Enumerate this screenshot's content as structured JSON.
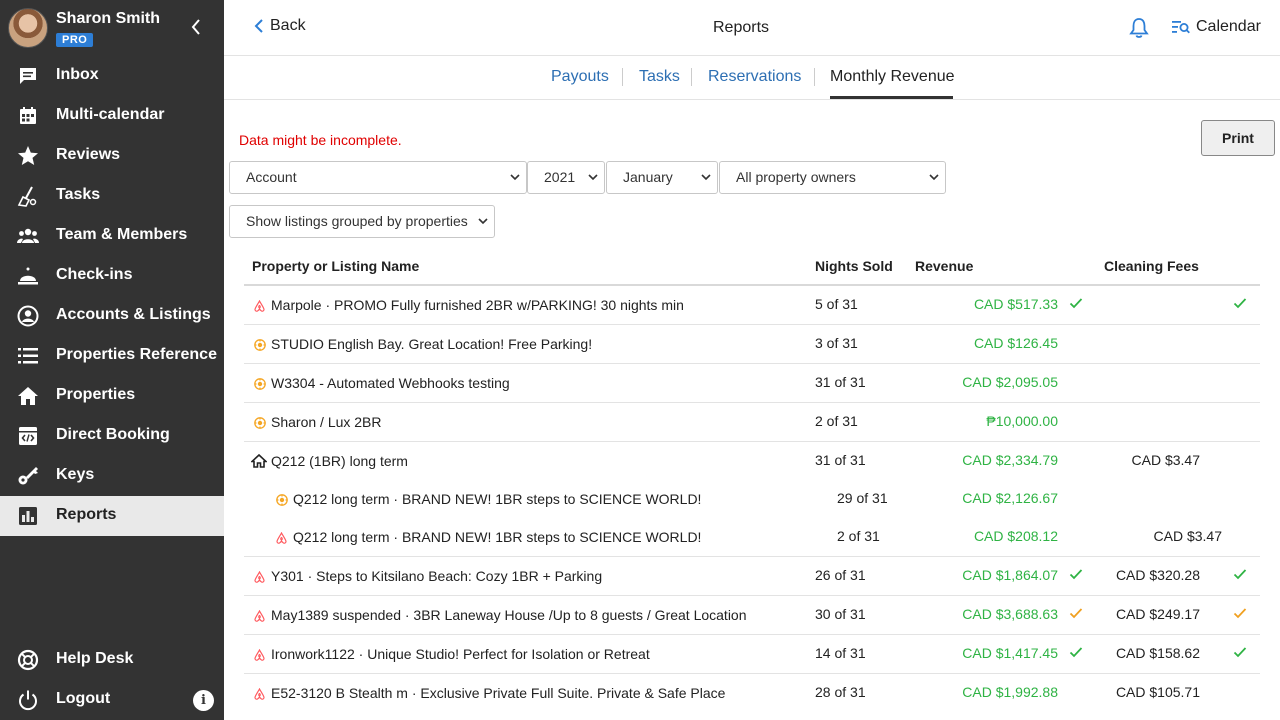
{
  "sidebar": {
    "user_name": "Sharon Smith",
    "badge": "PRO",
    "items": [
      {
        "label": "Inbox",
        "icon": "inbox-icon"
      },
      {
        "label": "Multi-calendar",
        "icon": "calendar-icon"
      },
      {
        "label": "Reviews",
        "icon": "star-icon"
      },
      {
        "label": "Tasks",
        "icon": "broom-icon"
      },
      {
        "label": "Team & Members",
        "icon": "team-icon"
      },
      {
        "label": "Check-ins",
        "icon": "bell-desk-icon"
      },
      {
        "label": "Accounts & Listings",
        "icon": "account-icon"
      },
      {
        "label": "Properties Reference",
        "icon": "list-icon"
      },
      {
        "label": "Properties",
        "icon": "home-icon"
      },
      {
        "label": "Direct Booking",
        "icon": "code-browser-icon"
      },
      {
        "label": "Keys",
        "icon": "key-icon"
      },
      {
        "label": "Reports",
        "icon": "bar-chart-icon"
      }
    ],
    "bottom_items": [
      {
        "label": "Help Desk",
        "icon": "lifebuoy-icon"
      },
      {
        "label": "Logout",
        "icon": "power-icon"
      }
    ],
    "info_icon": "i"
  },
  "header": {
    "back_label": "Back",
    "title": "Reports",
    "calendar_label": "Calendar"
  },
  "tabs": [
    {
      "label": "Payouts",
      "active": false
    },
    {
      "label": "Tasks",
      "active": false
    },
    {
      "label": "Reservations",
      "active": false
    },
    {
      "label": "Monthly Revenue",
      "active": true
    }
  ],
  "warning": "Data might be incomplete.",
  "print_label": "Print",
  "filters": {
    "account": "Account",
    "year": "2021",
    "month": "January",
    "owners": "All property owners",
    "grouping": "Show listings grouped by properties"
  },
  "table": {
    "headers": [
      "Property or Listing Name",
      "Nights Sold",
      "Revenue",
      "Cleaning Fees"
    ],
    "rows": [
      {
        "name": "Marpole · PROMO Fully furnished 2BR w/PARKING! 30 nights min",
        "nights": "5 of 31",
        "revenue": "CAD $517.33",
        "fees": "",
        "source": "airbnb",
        "rev_check": "green",
        "fee_check": "green"
      },
      {
        "name": "STUDIO English Bay. Great Location! Free Parking!",
        "nights": "3 of 31",
        "revenue": "CAD $126.45",
        "fees": "",
        "source": "booking",
        "rev_check": "",
        "fee_check": ""
      },
      {
        "name": "W3304 - Automated Webhooks testing",
        "nights": "31 of 31",
        "revenue": "CAD $2,095.05",
        "fees": "",
        "source": "booking",
        "rev_check": "",
        "fee_check": ""
      },
      {
        "name": "Sharon / Lux 2BR",
        "nights": "2 of 31",
        "revenue": "₱10,000.00",
        "fees": "",
        "source": "booking",
        "rev_check": "",
        "fee_check": ""
      },
      {
        "name": "Q212 (1BR) long term",
        "nights": "31 of 31",
        "revenue": "CAD $2,334.79",
        "fees": "CAD $3.47",
        "source": "property",
        "rev_check": "",
        "fee_check": ""
      },
      {
        "name": "Q212 long term · BRAND NEW! 1BR steps to SCIENCE WORLD!",
        "nights": "29 of 31",
        "revenue": "CAD $2,126.67",
        "fees": "",
        "source": "booking",
        "rev_check": "",
        "fee_check": ""
      },
      {
        "name": "Q212 long term · BRAND NEW! 1BR steps to SCIENCE WORLD!",
        "nights": "2 of 31",
        "revenue": "CAD $208.12",
        "fees": "CAD $3.47",
        "source": "airbnb",
        "rev_check": "",
        "fee_check": ""
      },
      {
        "name": "Y301 · Steps to Kitsilano Beach: Cozy 1BR + Parking",
        "nights": "26 of 31",
        "revenue": "CAD $1,864.07",
        "fees": "CAD $320.28",
        "source": "airbnb",
        "rev_check": "green",
        "fee_check": "green"
      },
      {
        "name": "May1389 suspended · 3BR Laneway House /Up to 8 guests / Great Location",
        "nights": "30 of 31",
        "revenue": "CAD $3,688.63",
        "fees": "CAD $249.17",
        "source": "airbnb",
        "rev_check": "orange",
        "fee_check": "orange"
      },
      {
        "name": "Ironwork1122 · Unique Studio! Perfect for Isolation or Retreat",
        "nights": "14 of 31",
        "revenue": "CAD $1,417.45",
        "fees": "CAD $158.62",
        "source": "airbnb",
        "rev_check": "green",
        "fee_check": "green"
      },
      {
        "name": "E52-3120 B Stealth m · Exclusive Private Full Suite. Private & Safe Place",
        "nights": "28 of 31",
        "revenue": "CAD $1,992.88",
        "fees": "CAD $105.71",
        "source": "airbnb",
        "rev_check": "",
        "fee_check": ""
      }
    ]
  },
  "colors": {
    "sidebar_bg": "#333333",
    "accent": "#2d7ed6",
    "revenue_green": "#2fb344",
    "check_orange": "#f0a020",
    "warning_red": "#e00000",
    "airbnb": "#ff5a5f",
    "booking": "#f5a623"
  }
}
